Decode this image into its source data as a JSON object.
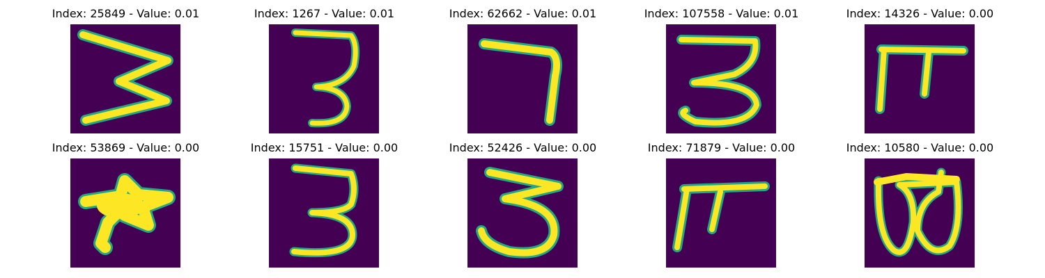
{
  "figure": {
    "background_color": "#440154",
    "stroke_color": "#fde725",
    "edge_color": "#22a884",
    "panels": [
      {
        "index": "25849",
        "value": "0.01",
        "title": "Index: 25849 - Value: 0.01"
      },
      {
        "index": "1267",
        "value": "0.01",
        "title": "Index: 1267 - Value: 0.01"
      },
      {
        "index": "62662",
        "value": "0.01",
        "title": "Index: 62662 - Value: 0.01"
      },
      {
        "index": "107558",
        "value": "0.01",
        "title": "Index: 107558 - Value: 0.01"
      },
      {
        "index": "14326",
        "value": "0.00",
        "title": "Index: 14326 - Value: 0.00"
      },
      {
        "index": "53869",
        "value": "0.00",
        "title": "Index: 53869 - Value: 0.00"
      },
      {
        "index": "15751",
        "value": "0.00",
        "title": "Index: 15751 - Value: 0.00"
      },
      {
        "index": "52426",
        "value": "0.00",
        "title": "Index: 52426 - Value: 0.00"
      },
      {
        "index": "71879",
        "value": "0.00",
        "title": "Index: 71879 - Value: 0.00"
      },
      {
        "index": "10580",
        "value": "0.00",
        "title": "Index: 10580 - Value: 0.00"
      }
    ]
  }
}
